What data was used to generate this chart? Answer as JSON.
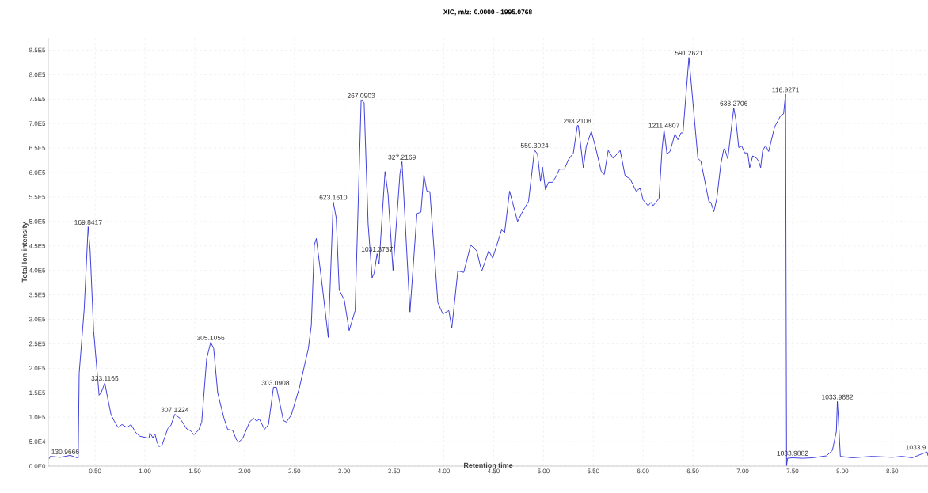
{
  "chart_data": {
    "type": "line",
    "title": "XIC, m/z: 0.0000 - 1995.0768",
    "xlabel": "Retention time",
    "ylabel": "Total Ion intensity",
    "x": [
      0.04,
      0.05,
      0.15,
      0.25,
      0.32,
      0.33,
      0.34,
      0.39,
      0.43,
      0.45,
      0.485,
      0.54,
      0.56,
      0.597,
      0.624,
      0.66,
      0.69,
      0.73,
      0.77,
      0.82,
      0.86,
      0.91,
      0.95,
      1.04,
      1.05,
      1.08,
      1.1,
      1.12,
      1.14,
      1.17,
      1.23,
      1.26,
      1.3,
      1.35,
      1.42,
      1.46,
      1.49,
      1.54,
      1.57,
      1.62,
      1.66,
      1.69,
      1.73,
      1.79,
      1.83,
      1.88,
      1.92,
      1.94,
      1.98,
      2.05,
      2.09,
      2.12,
      2.15,
      2.2,
      2.24,
      2.29,
      2.32,
      2.39,
      2.42,
      2.47,
      2.55,
      2.64,
      2.67,
      2.7,
      2.72,
      2.77,
      2.84,
      2.89,
      2.92,
      2.95,
      3.0,
      3.05,
      3.11,
      3.17,
      3.2,
      3.24,
      3.28,
      3.3,
      3.33,
      3.35,
      3.41,
      3.44,
      3.49,
      3.56,
      3.58,
      3.66,
      3.73,
      3.77,
      3.8,
      3.83,
      3.86,
      3.94,
      3.99,
      4.05,
      4.08,
      4.14,
      4.16,
      4.2,
      4.27,
      4.3,
      4.33,
      4.38,
      4.45,
      4.49,
      4.58,
      4.61,
      4.66,
      4.74,
      4.79,
      4.85,
      4.91,
      4.94,
      4.97,
      4.99,
      5.02,
      5.05,
      5.09,
      5.13,
      5.16,
      5.21,
      5.25,
      5.3,
      5.34,
      5.35,
      5.4,
      5.43,
      5.48,
      5.52,
      5.58,
      5.61,
      5.65,
      5.7,
      5.77,
      5.82,
      5.87,
      5.93,
      5.97,
      6.0,
      6.05,
      6.08,
      6.1,
      6.16,
      6.19,
      6.21,
      6.24,
      6.27,
      6.32,
      6.35,
      6.38,
      6.4,
      6.46,
      6.55,
      6.58,
      6.66,
      6.68,
      6.71,
      6.74,
      6.78,
      6.81,
      6.82,
      6.85,
      6.91,
      6.93,
      6.96,
      6.99,
      7.02,
      7.05,
      7.07,
      7.1,
      7.14,
      7.16,
      7.18,
      7.2,
      7.23,
      7.26,
      7.32,
      7.38,
      7.41,
      7.43,
      7.44,
      7.45,
      7.5,
      7.6,
      7.7,
      7.84,
      7.9,
      7.94,
      7.95,
      7.96,
      7.98,
      8.1,
      8.3,
      8.5,
      8.6,
      8.7,
      8.85,
      8.86
    ],
    "values": [
      15000,
      20000,
      18000,
      22000,
      17000,
      17000,
      190000,
      320000,
      489000,
      440000,
      276000,
      145000,
      150000,
      170000,
      141000,
      105000,
      93000,
      79000,
      85000,
      79000,
      85000,
      68000,
      61000,
      57000,
      68000,
      58000,
      66000,
      50000,
      40000,
      42000,
      77000,
      83000,
      106000,
      98000,
      76000,
      72000,
      64000,
      74000,
      90000,
      220000,
      253000,
      240000,
      150000,
      100000,
      75000,
      73000,
      53000,
      49000,
      56000,
      90000,
      98000,
      92000,
      96000,
      75000,
      85000,
      161000,
      161000,
      93000,
      90000,
      105000,
      160000,
      240000,
      288000,
      452000,
      465000,
      385000,
      263000,
      540000,
      507000,
      360000,
      340000,
      277000,
      318000,
      748000,
      743000,
      495000,
      385000,
      394000,
      434000,
      413000,
      602000,
      556000,
      400000,
      598000,
      622000,
      315000,
      516000,
      519000,
      595000,
      562000,
      561000,
      334000,
      311000,
      318000,
      282000,
      398000,
      398000,
      396000,
      452000,
      446000,
      440000,
      398000,
      440000,
      425000,
      483000,
      477000,
      562000,
      500000,
      520000,
      541000,
      646000,
      638000,
      582000,
      611000,
      565000,
      580000,
      580000,
      593000,
      607000,
      607000,
      626000,
      640000,
      696000,
      696000,
      610000,
      654000,
      684000,
      654000,
      602000,
      596000,
      645000,
      629000,
      645000,
      593000,
      587000,
      562000,
      568000,
      544000,
      532000,
      539000,
      532000,
      547000,
      648000,
      687000,
      638000,
      643000,
      679000,
      667000,
      681000,
      681000,
      835000,
      629000,
      623000,
      541000,
      539000,
      520000,
      547000,
      617000,
      648000,
      648000,
      628000,
      732000,
      709000,
      651000,
      654000,
      640000,
      640000,
      610000,
      634000,
      629000,
      623000,
      610000,
      645000,
      655000,
      643000,
      693000,
      716000,
      720000,
      760000,
      1000,
      16000,
      17000,
      16000,
      17000,
      21000,
      32000,
      71000,
      132000,
      99000,
      20000,
      17000,
      20000,
      18000,
      20000,
      17000,
      29000,
      21000
    ],
    "color": "#2b2bd9",
    "xlim": [
      0.03,
      8.86
    ],
    "ylim": [
      0,
      875000
    ],
    "xticks": [
      {
        "value": 0.5,
        "label": "0.50"
      },
      {
        "value": 1.0,
        "label": "1.00"
      },
      {
        "value": 1.5,
        "label": "1.50"
      },
      {
        "value": 2.0,
        "label": "2.00"
      },
      {
        "value": 2.5,
        "label": "2.50"
      },
      {
        "value": 3.0,
        "label": "3.00"
      },
      {
        "value": 3.5,
        "label": "3.50"
      },
      {
        "value": 4.0,
        "label": "4.00"
      },
      {
        "value": 4.5,
        "label": "4.50"
      },
      {
        "value": 5.0,
        "label": "5.00"
      },
      {
        "value": 5.5,
        "label": "5.50"
      },
      {
        "value": 6.0,
        "label": "6.00"
      },
      {
        "value": 6.5,
        "label": "6.50"
      },
      {
        "value": 7.0,
        "label": "7.00"
      },
      {
        "value": 7.5,
        "label": "7.50"
      },
      {
        "value": 8.0,
        "label": "8.00"
      },
      {
        "value": 8.5,
        "label": "8.50"
      }
    ],
    "yticks": [
      {
        "value": 0,
        "label": "0.0E0"
      },
      {
        "value": 50000,
        "label": "5.0E4"
      },
      {
        "value": 100000,
        "label": "1.0E5"
      },
      {
        "value": 150000,
        "label": "1.5E5"
      },
      {
        "value": 200000,
        "label": "2.0E5"
      },
      {
        "value": 250000,
        "label": "2.5E5"
      },
      {
        "value": 300000,
        "label": "3.0E5"
      },
      {
        "value": 350000,
        "label": "3.5E5"
      },
      {
        "value": 400000,
        "label": "4.0E5"
      },
      {
        "value": 450000,
        "label": "4.5E5"
      },
      {
        "value": 500000,
        "label": "5.0E5"
      },
      {
        "value": 550000,
        "label": "5.5E5"
      },
      {
        "value": 600000,
        "label": "6.0E5"
      },
      {
        "value": 650000,
        "label": "6.5E5"
      },
      {
        "value": 700000,
        "label": "7.0E5"
      },
      {
        "value": 750000,
        "label": "7.5E5"
      },
      {
        "value": 800000,
        "label": "8.0E5"
      },
      {
        "value": 850000,
        "label": "8.5E5"
      }
    ],
    "grid": true,
    "marker": "none",
    "line_style": "solid",
    "annotations": [
      {
        "text": "130.9666",
        "x": 0.2,
        "y": 20000
      },
      {
        "text": "169.8417",
        "x": 0.43,
        "y": 489000
      },
      {
        "text": "323.1165",
        "x": 0.597,
        "y": 170000
      },
      {
        "text": "307.1224",
        "x": 1.3,
        "y": 106000
      },
      {
        "text": "305.1056",
        "x": 1.66,
        "y": 253000
      },
      {
        "text": "303.0908",
        "x": 2.31,
        "y": 161000
      },
      {
        "text": "623.1610",
        "x": 2.89,
        "y": 540000
      },
      {
        "text": "267.0903",
        "x": 3.17,
        "y": 748000
      },
      {
        "text": "1031.3737",
        "x": 3.33,
        "y": 434000
      },
      {
        "text": "327.2169",
        "x": 3.58,
        "y": 622000
      },
      {
        "text": "559.3024",
        "x": 4.91,
        "y": 646000
      },
      {
        "text": "293.2108",
        "x": 5.34,
        "y": 696000
      },
      {
        "text": "1211.4807",
        "x": 6.21,
        "y": 687000
      },
      {
        "text": "591.2621",
        "x": 6.46,
        "y": 835000
      },
      {
        "text": "633.2706",
        "x": 6.91,
        "y": 732000
      },
      {
        "text": "116.9271",
        "x": 7.43,
        "y": 760000
      },
      {
        "text": "1033.9882",
        "x": 7.5,
        "y": 17000
      },
      {
        "text": "1033.9882",
        "x": 7.95,
        "y": 132000
      },
      {
        "text": "1033.9",
        "x": 8.85,
        "y": 29000
      }
    ]
  }
}
